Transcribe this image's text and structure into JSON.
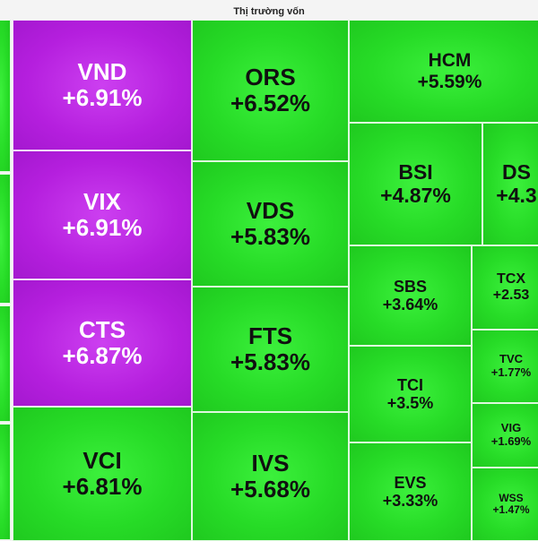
{
  "chart_data": {
    "type": "treemap",
    "title": "Thị trường vốn",
    "colors": {
      "ceiling": "#b51fde",
      "up": "#27dc27"
    },
    "tiles": [
      {
        "symbol": "",
        "change": "",
        "value": null,
        "color": "up"
      },
      {
        "symbol": "",
        "change": "",
        "value": null,
        "color": "up"
      },
      {
        "symbol": "",
        "change": "",
        "value": null,
        "color": "up"
      },
      {
        "symbol": "",
        "change": "",
        "value": null,
        "color": "up"
      },
      {
        "symbol": "VND",
        "change": "+6.91%",
        "value": 6.91,
        "color": "ceiling"
      },
      {
        "symbol": "VIX",
        "change": "+6.91%",
        "value": 6.91,
        "color": "ceiling"
      },
      {
        "symbol": "CTS",
        "change": "+6.87%",
        "value": 6.87,
        "color": "ceiling"
      },
      {
        "symbol": "VCI",
        "change": "+6.81%",
        "value": 6.81,
        "color": "up"
      },
      {
        "symbol": "ORS",
        "change": "+6.52%",
        "value": 6.52,
        "color": "up"
      },
      {
        "symbol": "VDS",
        "change": "+5.83%",
        "value": 5.83,
        "color": "up"
      },
      {
        "symbol": "FTS",
        "change": "+5.83%",
        "value": 5.83,
        "color": "up"
      },
      {
        "symbol": "IVS",
        "change": "+5.68%",
        "value": 5.68,
        "color": "up"
      },
      {
        "symbol": "HCM",
        "change": "+5.59%",
        "value": 5.59,
        "color": "up"
      },
      {
        "symbol": "BSI",
        "change": "+4.87%",
        "value": 4.87,
        "color": "up"
      },
      {
        "symbol": "DS",
        "change": "+4.3",
        "value": 4.3,
        "color": "up"
      },
      {
        "symbol": "SBS",
        "change": "+3.64%",
        "value": 3.64,
        "color": "up"
      },
      {
        "symbol": "TCX",
        "change": "+2.53",
        "value": 2.53,
        "color": "up"
      },
      {
        "symbol": "TCI",
        "change": "+3.5%",
        "value": 3.5,
        "color": "up"
      },
      {
        "symbol": "TVC",
        "change": "+1.77%",
        "value": 1.77,
        "color": "up"
      },
      {
        "symbol": "EVS",
        "change": "+3.33%",
        "value": 3.33,
        "color": "up"
      },
      {
        "symbol": "VIG",
        "change": "+1.69%",
        "value": 1.69,
        "color": "up"
      },
      {
        "symbol": "WSS",
        "change": "+1.47%",
        "value": 1.47,
        "color": "up"
      }
    ]
  }
}
